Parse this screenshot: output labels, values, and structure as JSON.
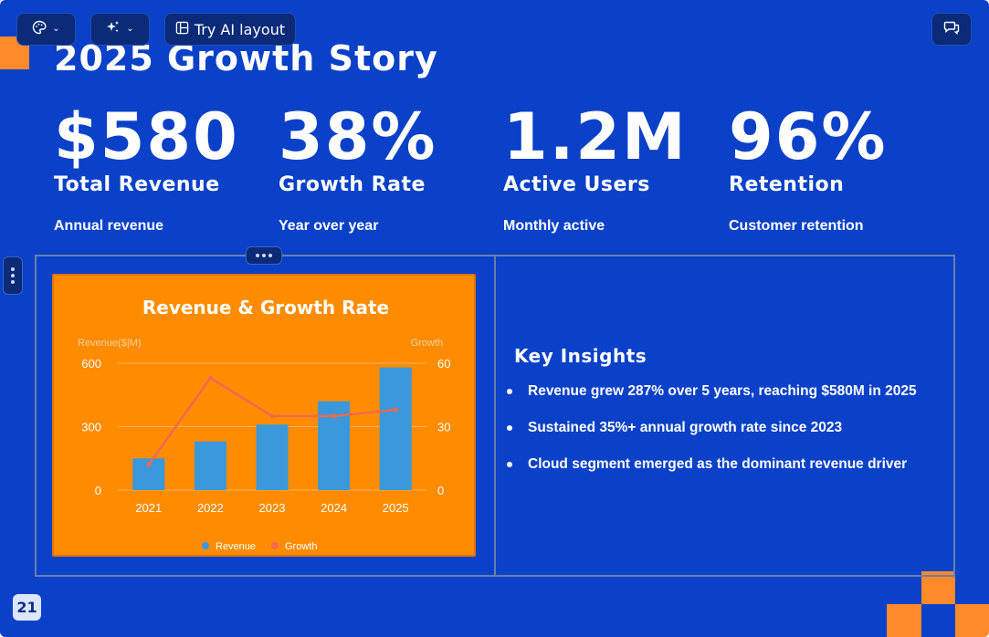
{
  "toolbar": {
    "theme_icon": "palette-icon",
    "ai_icon": "sparkles-icon",
    "ai_layout_icon": "layout-icon",
    "ai_layout_label": "Try AI layout",
    "comments_icon": "comment-icon"
  },
  "slide": {
    "title": "2025 Growth Story",
    "stats": [
      {
        "value": "$580",
        "label": "Total Revenue",
        "sub": "Annual revenue"
      },
      {
        "value": "38%",
        "label": "Growth Rate",
        "sub": "Year over year"
      },
      {
        "value": "1.2M",
        "label": "Active Users",
        "sub": "Monthly active"
      },
      {
        "value": "96%",
        "label": "Retention",
        "sub": "Customer retention"
      }
    ],
    "insights": {
      "heading": "Key Insights",
      "items": [
        "Revenue grew 287% over 5 years, reaching $580M in 2025",
        "Sustained 35%+ annual growth rate since 2023",
        "Cloud segment emerged as the dominant revenue driver"
      ]
    },
    "page_number": "21"
  },
  "colors": {
    "background": "#0a41c8",
    "accent": "#ff8a2a",
    "bar": "#3a98db",
    "line": "#f2694f"
  },
  "chart_data": {
    "type": "bar",
    "title": "Revenue & Growth Rate",
    "categories": [
      "2021",
      "2022",
      "2023",
      "2024",
      "2025"
    ],
    "series": [
      {
        "name": "Revenue",
        "type": "bar",
        "axis": "left",
        "values": [
          150,
          230,
          310,
          420,
          580
        ]
      },
      {
        "name": "Growth",
        "type": "line",
        "axis": "right",
        "values": [
          12,
          53,
          35,
          35,
          38
        ]
      }
    ],
    "ylabel": "Revenue($|M)",
    "y2label": "Growth",
    "ylim": [
      0,
      600
    ],
    "y2lim": [
      0,
      60
    ],
    "yticks": [
      "0",
      "300",
      "600"
    ],
    "y2ticks": [
      "0",
      "30",
      "60"
    ],
    "grid": true,
    "legend": "bottom"
  }
}
